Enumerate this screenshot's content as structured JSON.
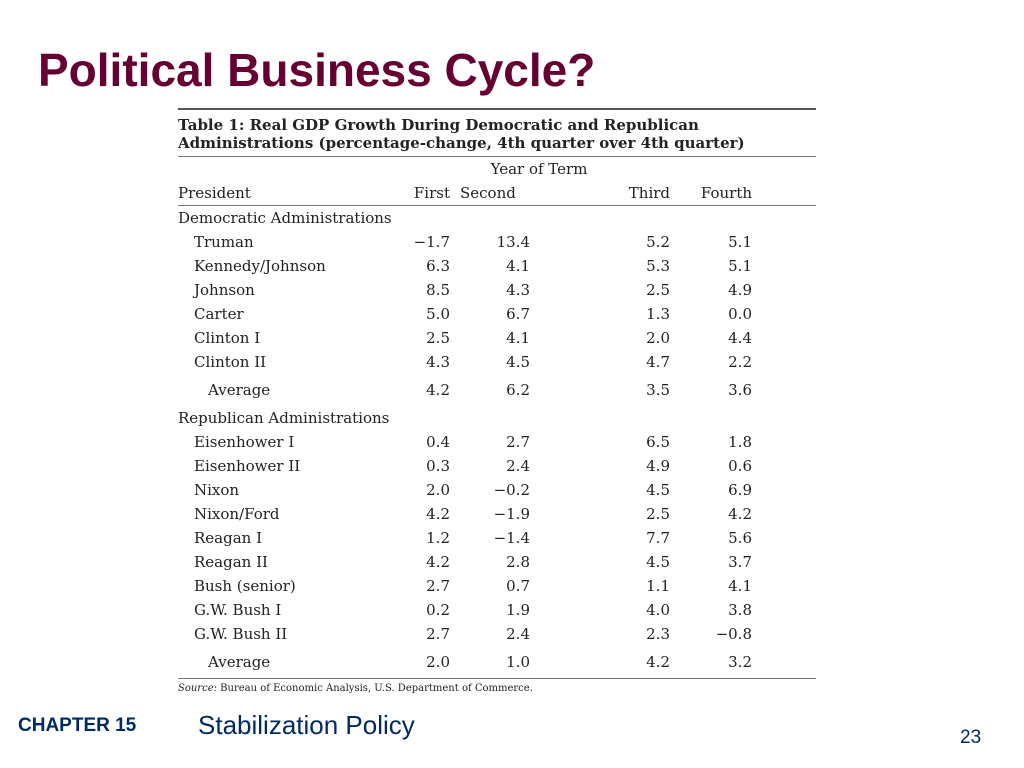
{
  "slide": {
    "title": "Political Business Cycle?",
    "footer_chapter": "CHAPTER 15",
    "footer_topic": "Stabilization Policy",
    "page_number": "23"
  },
  "table": {
    "caption_line1": "Table 1: Real GDP Growth During Democratic and Republican",
    "caption_line2": "Administrations  (percentage-change, 4th quarter over 4th quarter)",
    "term_header": "Year of Term",
    "columns": [
      "President",
      "First",
      "Second",
      "Third",
      "Fourth"
    ],
    "democratic": {
      "label": "Democratic Administrations",
      "rows": [
        {
          "name": "Truman",
          "first": "−1.7",
          "second": "13.4",
          "third": "5.2",
          "fourth": "5.1"
        },
        {
          "name": "Kennedy/Johnson",
          "first": "6.3",
          "second": "4.1",
          "third": "5.3",
          "fourth": "5.1"
        },
        {
          "name": "Johnson",
          "first": "8.5",
          "second": "4.3",
          "third": "2.5",
          "fourth": "4.9"
        },
        {
          "name": "Carter",
          "first": "5.0",
          "second": "6.7",
          "third": "1.3",
          "fourth": "0.0"
        },
        {
          "name": "Clinton I",
          "first": "2.5",
          "second": "4.1",
          "third": "2.0",
          "fourth": "4.4"
        },
        {
          "name": "Clinton II",
          "first": "4.3",
          "second": "4.5",
          "third": "4.7",
          "fourth": "2.2"
        }
      ],
      "average": {
        "name": "Average",
        "first": "4.2",
        "second": "6.2",
        "third": "3.5",
        "fourth": "3.6"
      }
    },
    "republican": {
      "label": "Republican Administrations",
      "rows": [
        {
          "name": "Eisenhower I",
          "first": "0.4",
          "second": "2.7",
          "third": "6.5",
          "fourth": "1.8"
        },
        {
          "name": "Eisenhower II",
          "first": "0.3",
          "second": "2.4",
          "third": "4.9",
          "fourth": "0.6"
        },
        {
          "name": "Nixon",
          "first": "2.0",
          "second": "−0.2",
          "third": "4.5",
          "fourth": "6.9"
        },
        {
          "name": "Nixon/Ford",
          "first": "4.2",
          "second": "−1.9",
          "third": "2.5",
          "fourth": "4.2"
        },
        {
          "name": "Reagan I",
          "first": "1.2",
          "second": "−1.4",
          "third": "7.7",
          "fourth": "5.6"
        },
        {
          "name": "Reagan II",
          "first": "4.2",
          "second": "2.8",
          "third": "4.5",
          "fourth": "3.7"
        },
        {
          "name": "Bush (senior)",
          "first": "2.7",
          "second": "0.7",
          "third": "1.1",
          "fourth": "4.1"
        },
        {
          "name": "G.W. Bush I",
          "first": "0.2",
          "second": "1.9",
          "third": "4.0",
          "fourth": "3.8"
        },
        {
          "name": "G.W. Bush II",
          "first": "2.7",
          "second": "2.4",
          "third": "2.3",
          "fourth": "−0.8"
        }
      ],
      "average": {
        "name": "Average",
        "first": "2.0",
        "second": "1.0",
        "third": "4.2",
        "fourth": "3.2"
      }
    },
    "source_label": "Source:",
    "source_text": " Bureau of Economic Analysis, U.S. Department of Commerce."
  },
  "colors": {
    "title": "#660033",
    "footer": "#002a66",
    "text": "#222222"
  }
}
